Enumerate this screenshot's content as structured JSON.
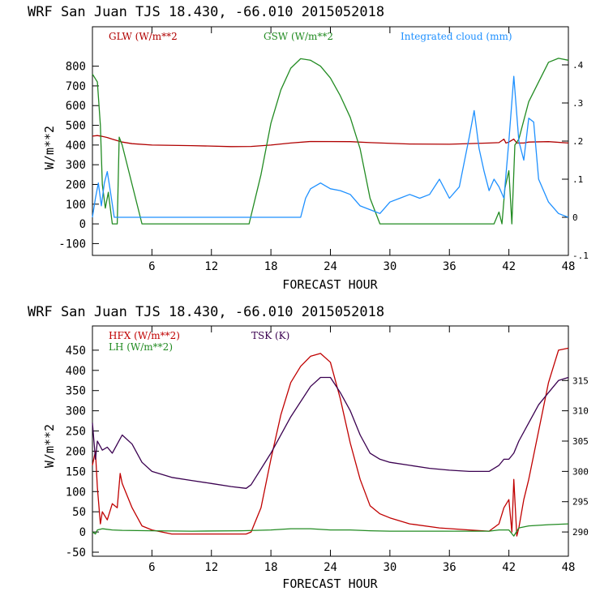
{
  "colors": {
    "glw": "#b00000",
    "gsw": "#228b22",
    "cloud": "#1e90ff",
    "hfx": "#c00000",
    "lh": "#228b22",
    "tsk": "#3a0050"
  },
  "chart_data": [
    {
      "type": "line",
      "title": "WRF  San Juan TJS  18.430, -66.010  2015052018",
      "xlabel": "FORECAST HOUR",
      "ylabel": "W/m**2",
      "xlim": [
        0,
        48
      ],
      "ylim": [
        -160,
        1000
      ],
      "x_ticks": [
        "6",
        "12",
        "18",
        "24",
        "30",
        "36",
        "42",
        "48"
      ],
      "y_ticks": [
        "-100",
        "0",
        "100",
        "200",
        "300",
        "400",
        "500",
        "600",
        "700",
        "800"
      ],
      "y2_lim": [
        -0.1,
        0.5
      ],
      "y2_ticks": [
        "-.1",
        "0",
        ".1",
        ".2",
        ".3",
        ".4"
      ],
      "series": [
        {
          "name": "GLW (W/m**2)",
          "axis": "left",
          "color_key": "glw",
          "points": [
            [
              0,
              445
            ],
            [
              0.5,
              448
            ],
            [
              1,
              444
            ],
            [
              1.5,
              438
            ],
            [
              2,
              430
            ],
            [
              3,
              415
            ],
            [
              4,
              407
            ],
            [
              6,
              400
            ],
            [
              10,
              397
            ],
            [
              14,
              392
            ],
            [
              16,
              393
            ],
            [
              18,
              400
            ],
            [
              20,
              410
            ],
            [
              22,
              418
            ],
            [
              26,
              417
            ],
            [
              28,
              412
            ],
            [
              32,
              405
            ],
            [
              36,
              404
            ],
            [
              40,
              410
            ],
            [
              41,
              412
            ],
            [
              41.5,
              430
            ],
            [
              41.7,
              410
            ],
            [
              42,
              415
            ],
            [
              42.5,
              430
            ],
            [
              42.8,
              410
            ],
            [
              43.5,
              410
            ],
            [
              44,
              415
            ],
            [
              46,
              417
            ],
            [
              48,
              410
            ]
          ]
        },
        {
          "name": "GSW (W/m**2",
          "axis": "left",
          "color_key": "gsw",
          "points": [
            [
              0,
              760
            ],
            [
              0.5,
              720
            ],
            [
              0.8,
              500
            ],
            [
              1,
              200
            ],
            [
              1.3,
              80
            ],
            [
              1.6,
              160
            ],
            [
              2,
              0
            ],
            [
              2.5,
              0
            ],
            [
              2.7,
              440
            ],
            [
              3,
              400
            ],
            [
              4,
              200
            ],
            [
              5,
              0
            ],
            [
              15.8,
              0
            ],
            [
              17,
              250
            ],
            [
              18,
              510
            ],
            [
              19,
              680
            ],
            [
              20,
              790
            ],
            [
              21,
              838
            ],
            [
              22,
              830
            ],
            [
              23,
              800
            ],
            [
              24,
              740
            ],
            [
              25,
              650
            ],
            [
              26,
              540
            ],
            [
              27,
              380
            ],
            [
              28,
              130
            ],
            [
              29,
              0
            ],
            [
              40.5,
              0
            ],
            [
              41,
              60
            ],
            [
              41.3,
              0
            ],
            [
              41.6,
              180
            ],
            [
              42,
              270
            ],
            [
              42.3,
              0
            ],
            [
              42.6,
              400
            ],
            [
              43,
              430
            ],
            [
              44,
              620
            ],
            [
              45,
              720
            ],
            [
              46,
              820
            ],
            [
              47,
              840
            ],
            [
              48,
              830
            ]
          ]
        },
        {
          "name": "Integrated cloud (mm)",
          "axis": "right",
          "color_key": "cloud",
          "points": [
            [
              0,
              0
            ],
            [
              0.3,
              0.05
            ],
            [
              0.6,
              0.09
            ],
            [
              0.9,
              0.03
            ],
            [
              1.2,
              0.09
            ],
            [
              1.5,
              0.12
            ],
            [
              1.8,
              0.07
            ],
            [
              2.2,
              0
            ],
            [
              21,
              0
            ],
            [
              21.5,
              0.05
            ],
            [
              22,
              0.075
            ],
            [
              23,
              0.09
            ],
            [
              24,
              0.075
            ],
            [
              25,
              0.07
            ],
            [
              26,
              0.06
            ],
            [
              27,
              0.03
            ],
            [
              28,
              0.02
            ],
            [
              29,
              0.01
            ],
            [
              30,
              0.04
            ],
            [
              31,
              0.05
            ],
            [
              32,
              0.06
            ],
            [
              33,
              0.05
            ],
            [
              34,
              0.06
            ],
            [
              35,
              0.1
            ],
            [
              36,
              0.05
            ],
            [
              37,
              0.08
            ],
            [
              38,
              0.21
            ],
            [
              38.5,
              0.28
            ],
            [
              39,
              0.18
            ],
            [
              39.5,
              0.12
            ],
            [
              40,
              0.07
            ],
            [
              40.5,
              0.1
            ],
            [
              41,
              0.08
            ],
            [
              41.5,
              0.05
            ],
            [
              42,
              0.2
            ],
            [
              42.5,
              0.37
            ],
            [
              43,
              0.2
            ],
            [
              43.5,
              0.15
            ],
            [
              44,
              0.26
            ],
            [
              44.5,
              0.25
            ],
            [
              45,
              0.1
            ],
            [
              46,
              0.04
            ],
            [
              47,
              0.01
            ],
            [
              48,
              0
            ]
          ]
        }
      ],
      "legend": [
        "GLW (W/m**2",
        "GSW (W/m**2",
        "Integrated cloud (mm)"
      ]
    },
    {
      "type": "line",
      "title": "WRF  San Juan TJS  18.430, -66.010  2015052018",
      "xlabel": "FORECAST HOUR",
      "ylabel": "W/m**2",
      "xlim": [
        0,
        48
      ],
      "ylim": [
        -60,
        510
      ],
      "x_ticks": [
        "6",
        "12",
        "18",
        "24",
        "30",
        "36",
        "42",
        "48"
      ],
      "y_ticks": [
        "-50",
        "0",
        "50",
        "100",
        "150",
        "200",
        "250",
        "300",
        "350",
        "400",
        "450"
      ],
      "y2_lim": [
        286,
        324
      ],
      "y2_ticks": [
        "290",
        "295",
        "300",
        "305",
        "310",
        "315"
      ],
      "series": [
        {
          "name": "HFX (W/m**2)",
          "axis": "left",
          "color_key": "hfx",
          "points": [
            [
              0,
              165
            ],
            [
              0.3,
              200
            ],
            [
              0.5,
              110
            ],
            [
              0.8,
              20
            ],
            [
              1,
              50
            ],
            [
              1.5,
              30
            ],
            [
              2,
              70
            ],
            [
              2.5,
              60
            ],
            [
              2.8,
              145
            ],
            [
              3,
              120
            ],
            [
              4,
              60
            ],
            [
              5,
              15
            ],
            [
              6,
              5
            ],
            [
              8,
              -5
            ],
            [
              12,
              -5
            ],
            [
              15.5,
              -5
            ],
            [
              16,
              0
            ],
            [
              17,
              60
            ],
            [
              18,
              180
            ],
            [
              19,
              290
            ],
            [
              20,
              370
            ],
            [
              21,
              410
            ],
            [
              22,
              435
            ],
            [
              23,
              442
            ],
            [
              24,
              420
            ],
            [
              25,
              330
            ],
            [
              26,
              220
            ],
            [
              27,
              130
            ],
            [
              28,
              65
            ],
            [
              29,
              45
            ],
            [
              30,
              35
            ],
            [
              32,
              20
            ],
            [
              35,
              10
            ],
            [
              38,
              5
            ],
            [
              40,
              2
            ],
            [
              41,
              20
            ],
            [
              41.5,
              60
            ],
            [
              42,
              80
            ],
            [
              42.3,
              0
            ],
            [
              42.5,
              130
            ],
            [
              42.8,
              -10
            ],
            [
              43,
              10
            ],
            [
              43.5,
              80
            ],
            [
              44,
              130
            ],
            [
              45,
              250
            ],
            [
              46,
              370
            ],
            [
              47,
              450
            ],
            [
              48,
              455
            ]
          ]
        },
        {
          "name": "LH (W/m**2)",
          "axis": "left",
          "color_key": "lh",
          "points": [
            [
              0,
              0
            ],
            [
              0.3,
              -5
            ],
            [
              0.5,
              5
            ],
            [
              1,
              8
            ],
            [
              2,
              5
            ],
            [
              3,
              4
            ],
            [
              6,
              3
            ],
            [
              10,
              2
            ],
            [
              15,
              3
            ],
            [
              18,
              5
            ],
            [
              20,
              8
            ],
            [
              22,
              8
            ],
            [
              24,
              5
            ],
            [
              26,
              5
            ],
            [
              28,
              3
            ],
            [
              30,
              2
            ],
            [
              35,
              2
            ],
            [
              40,
              2
            ],
            [
              41,
              5
            ],
            [
              42,
              5
            ],
            [
              42.5,
              -10
            ],
            [
              43,
              10
            ],
            [
              44,
              15
            ],
            [
              46,
              18
            ],
            [
              48,
              20
            ]
          ]
        },
        {
          "name": "TSK (K)",
          "axis": "right",
          "color_key": "tsk",
          "points": [
            [
              0,
              308
            ],
            [
              0.3,
              302
            ],
            [
              0.5,
              305
            ],
            [
              1,
              303.5
            ],
            [
              1.5,
              304
            ],
            [
              2,
              303
            ],
            [
              2.5,
              304.5
            ],
            [
              3,
              306
            ],
            [
              4,
              304.5
            ],
            [
              5,
              301.5
            ],
            [
              6,
              300
            ],
            [
              8,
              299
            ],
            [
              10,
              298.5
            ],
            [
              12,
              298
            ],
            [
              14,
              297.5
            ],
            [
              15.5,
              297.2
            ],
            [
              16,
              297.8
            ],
            [
              18,
              303
            ],
            [
              20,
              309
            ],
            [
              22,
              314
            ],
            [
              23,
              315.5
            ],
            [
              24,
              315.5
            ],
            [
              25,
              313
            ],
            [
              26,
              310
            ],
            [
              27,
              306
            ],
            [
              28,
              303
            ],
            [
              29,
              302
            ],
            [
              30,
              301.5
            ],
            [
              32,
              301
            ],
            [
              34,
              300.5
            ],
            [
              36,
              300.2
            ],
            [
              38,
              300
            ],
            [
              40,
              300
            ],
            [
              41,
              301
            ],
            [
              41.5,
              302
            ],
            [
              42,
              302
            ],
            [
              42.5,
              303
            ],
            [
              43,
              305
            ],
            [
              44,
              308
            ],
            [
              45,
              311
            ],
            [
              46,
              313
            ],
            [
              47,
              315
            ],
            [
              48,
              315.5
            ]
          ]
        }
      ],
      "legend": [
        "HFX (W/m**2)",
        "LH  (W/m**2)",
        "TSK (K)"
      ]
    }
  ]
}
